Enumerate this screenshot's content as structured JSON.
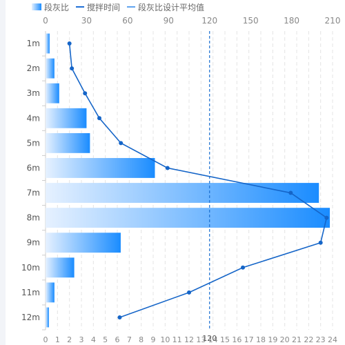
{
  "legend": {
    "bar_label": "段灰比",
    "line_label": "搅拌时间",
    "markline_label": "段灰比设计平均值"
  },
  "colors": {
    "bar_start": "#e6f1ff",
    "bar_end": "#1a8cff",
    "line": "#1565c8",
    "markline": "#1b6fd0",
    "axis_text": "#888888",
    "grid": "#e4e4e4"
  },
  "chart_data": {
    "type": "bar",
    "orientation": "horizontal",
    "categories": [
      "1m",
      "2m",
      "3m",
      "4m",
      "5m",
      "6m",
      "7m",
      "8m",
      "9m",
      "10m",
      "11m",
      "12m"
    ],
    "series": [
      {
        "name": "段灰比",
        "type": "bar",
        "axis": "top",
        "values": [
          3,
          6.5,
          10,
          30,
          32.5,
          80,
          200,
          208,
          55,
          21,
          6.5,
          2.5
        ]
      },
      {
        "name": "搅拌时间",
        "type": "line",
        "axis": "bottom",
        "values": [
          2,
          2.2,
          3.3,
          4.5,
          6.3,
          10.2,
          20.5,
          23.5,
          23,
          16.5,
          12,
          6.2
        ]
      }
    ],
    "mark_line": {
      "name": "段灰比设计平均值",
      "value": 120,
      "label": "120",
      "axis": "top",
      "style": "dashed"
    },
    "x_top": {
      "min": 0,
      "max": 210,
      "interval": 30,
      "ticks": [
        "0",
        "30",
        "60",
        "90",
        "120",
        "150",
        "180",
        "210"
      ]
    },
    "x_bottom": {
      "min": 0,
      "max": 24,
      "interval": 1,
      "ticks": [
        "0",
        "1",
        "2",
        "3",
        "4",
        "5",
        "6",
        "7",
        "8",
        "9",
        "10",
        "11",
        "12",
        "13",
        "14",
        "15",
        "16",
        "17",
        "18",
        "19",
        "20",
        "21",
        "22",
        "23",
        "24"
      ]
    },
    "grid": true,
    "legend_position": "top-left"
  }
}
